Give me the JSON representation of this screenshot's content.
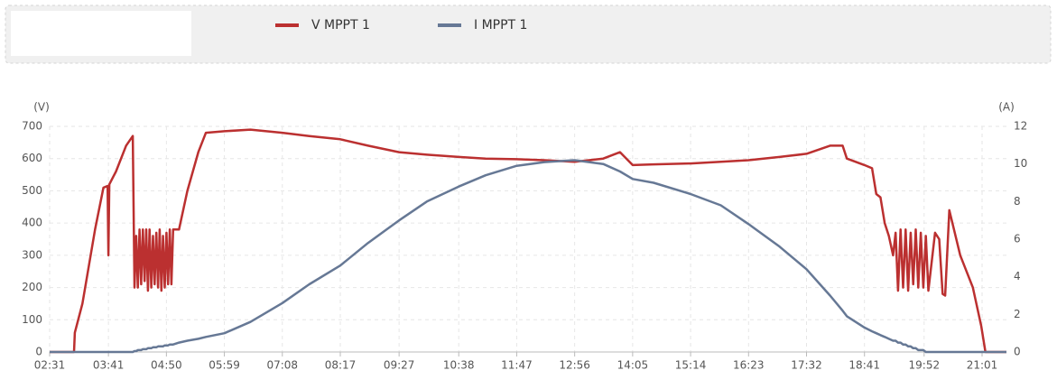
{
  "chart_data": {
    "type": "line",
    "y_label": "(V)",
    "y2_label": "(A)",
    "x": [
      "02:31",
      "03:00",
      "03:01",
      "03:10",
      "03:25",
      "03:35",
      "03:40",
      "03:41",
      "03:42",
      "03:50",
      "04:02",
      "04:10",
      "04:12",
      "04:14",
      "04:16",
      "04:18",
      "04:20",
      "04:22",
      "04:24",
      "04:26",
      "04:28",
      "04:30",
      "04:32",
      "04:34",
      "04:36",
      "04:38",
      "04:40",
      "04:42",
      "04:44",
      "04:46",
      "04:48",
      "04:50",
      "04:52",
      "04:54",
      "04:56",
      "04:58",
      "05:05",
      "05:15",
      "05:28",
      "05:37",
      "05:59",
      "06:30",
      "07:08",
      "07:40",
      "08:17",
      "08:50",
      "09:27",
      "10:00",
      "10:38",
      "11:10",
      "11:47",
      "12:20",
      "12:56",
      "13:30",
      "13:50",
      "14:05",
      "14:30",
      "15:14",
      "15:50",
      "16:23",
      "17:00",
      "17:32",
      "18:00",
      "18:15",
      "18:20",
      "18:41",
      "18:50",
      "18:55",
      "19:00",
      "19:05",
      "19:10",
      "19:15",
      "19:18",
      "19:21",
      "19:24",
      "19:27",
      "19:30",
      "19:33",
      "19:36",
      "19:39",
      "19:42",
      "19:45",
      "19:48",
      "19:51",
      "19:54",
      "19:57",
      "20:05",
      "20:10",
      "20:14",
      "20:17",
      "20:22",
      "20:35",
      "20:50",
      "21:00",
      "21:05",
      "21:30"
    ],
    "series": [
      {
        "name": "V MPPT 1",
        "color": "#bb3030",
        "axis": "y",
        "values": [
          0,
          0,
          60,
          150,
          380,
          510,
          515,
          300,
          520,
          560,
          640,
          670,
          200,
          360,
          200,
          380,
          210,
          380,
          220,
          380,
          190,
          380,
          200,
          360,
          210,
          370,
          200,
          380,
          190,
          360,
          200,
          370,
          210,
          380,
          210,
          380,
          380,
          500,
          620,
          680,
          685,
          690,
          680,
          670,
          660,
          640,
          620,
          612,
          605,
          600,
          598,
          595,
          590,
          600,
          620,
          580,
          582,
          585,
          590,
          595,
          605,
          615,
          640,
          640,
          600,
          580,
          570,
          490,
          480,
          400,
          360,
          300,
          370,
          190,
          380,
          200,
          380,
          190,
          370,
          210,
          380,
          200,
          370,
          200,
          360,
          190,
          370,
          350,
          180,
          175,
          440,
          300,
          200,
          80,
          0,
          0
        ]
      },
      {
        "name": "I MPPT 1",
        "color": "#667895",
        "axis": "y2",
        "values": [
          0,
          0,
          0,
          0,
          0,
          0,
          0,
          0,
          0,
          0,
          0,
          0,
          0.05,
          0.05,
          0.1,
          0.1,
          0.1,
          0.15,
          0.15,
          0.15,
          0.2,
          0.2,
          0.2,
          0.25,
          0.25,
          0.25,
          0.3,
          0.3,
          0.3,
          0.3,
          0.35,
          0.35,
          0.35,
          0.4,
          0.4,
          0.4,
          0.5,
          0.6,
          0.7,
          0.8,
          1.0,
          1.6,
          2.6,
          3.6,
          4.6,
          5.8,
          7.0,
          8.0,
          8.8,
          9.4,
          9.9,
          10.1,
          10.2,
          10.0,
          9.6,
          9.2,
          9.0,
          8.4,
          7.8,
          6.8,
          5.6,
          4.4,
          3.0,
          2.2,
          1.9,
          1.3,
          1.1,
          1.0,
          0.9,
          0.8,
          0.7,
          0.6,
          0.6,
          0.5,
          0.5,
          0.4,
          0.4,
          0.3,
          0.3,
          0.2,
          0.2,
          0.1,
          0.1,
          0.1,
          0,
          0,
          0,
          0,
          0,
          0,
          0,
          0,
          0,
          0,
          0,
          0
        ]
      }
    ],
    "xlim": [
      "02:31",
      "21:30"
    ],
    "xticks": [
      "02:31",
      "03:41",
      "04:50",
      "05:59",
      "07:08",
      "08:17",
      "09:27",
      "10:38",
      "11:47",
      "12:56",
      "14:05",
      "15:14",
      "16:23",
      "17:32",
      "18:41",
      "19:52",
      "21:01"
    ],
    "ylim": [
      0,
      700
    ],
    "yticks": [
      0,
      100,
      200,
      300,
      400,
      500,
      600,
      700
    ],
    "y2lim": [
      0,
      12
    ],
    "y2ticks": [
      0,
      2,
      4,
      6,
      8,
      10,
      12
    ],
    "grid": true
  }
}
